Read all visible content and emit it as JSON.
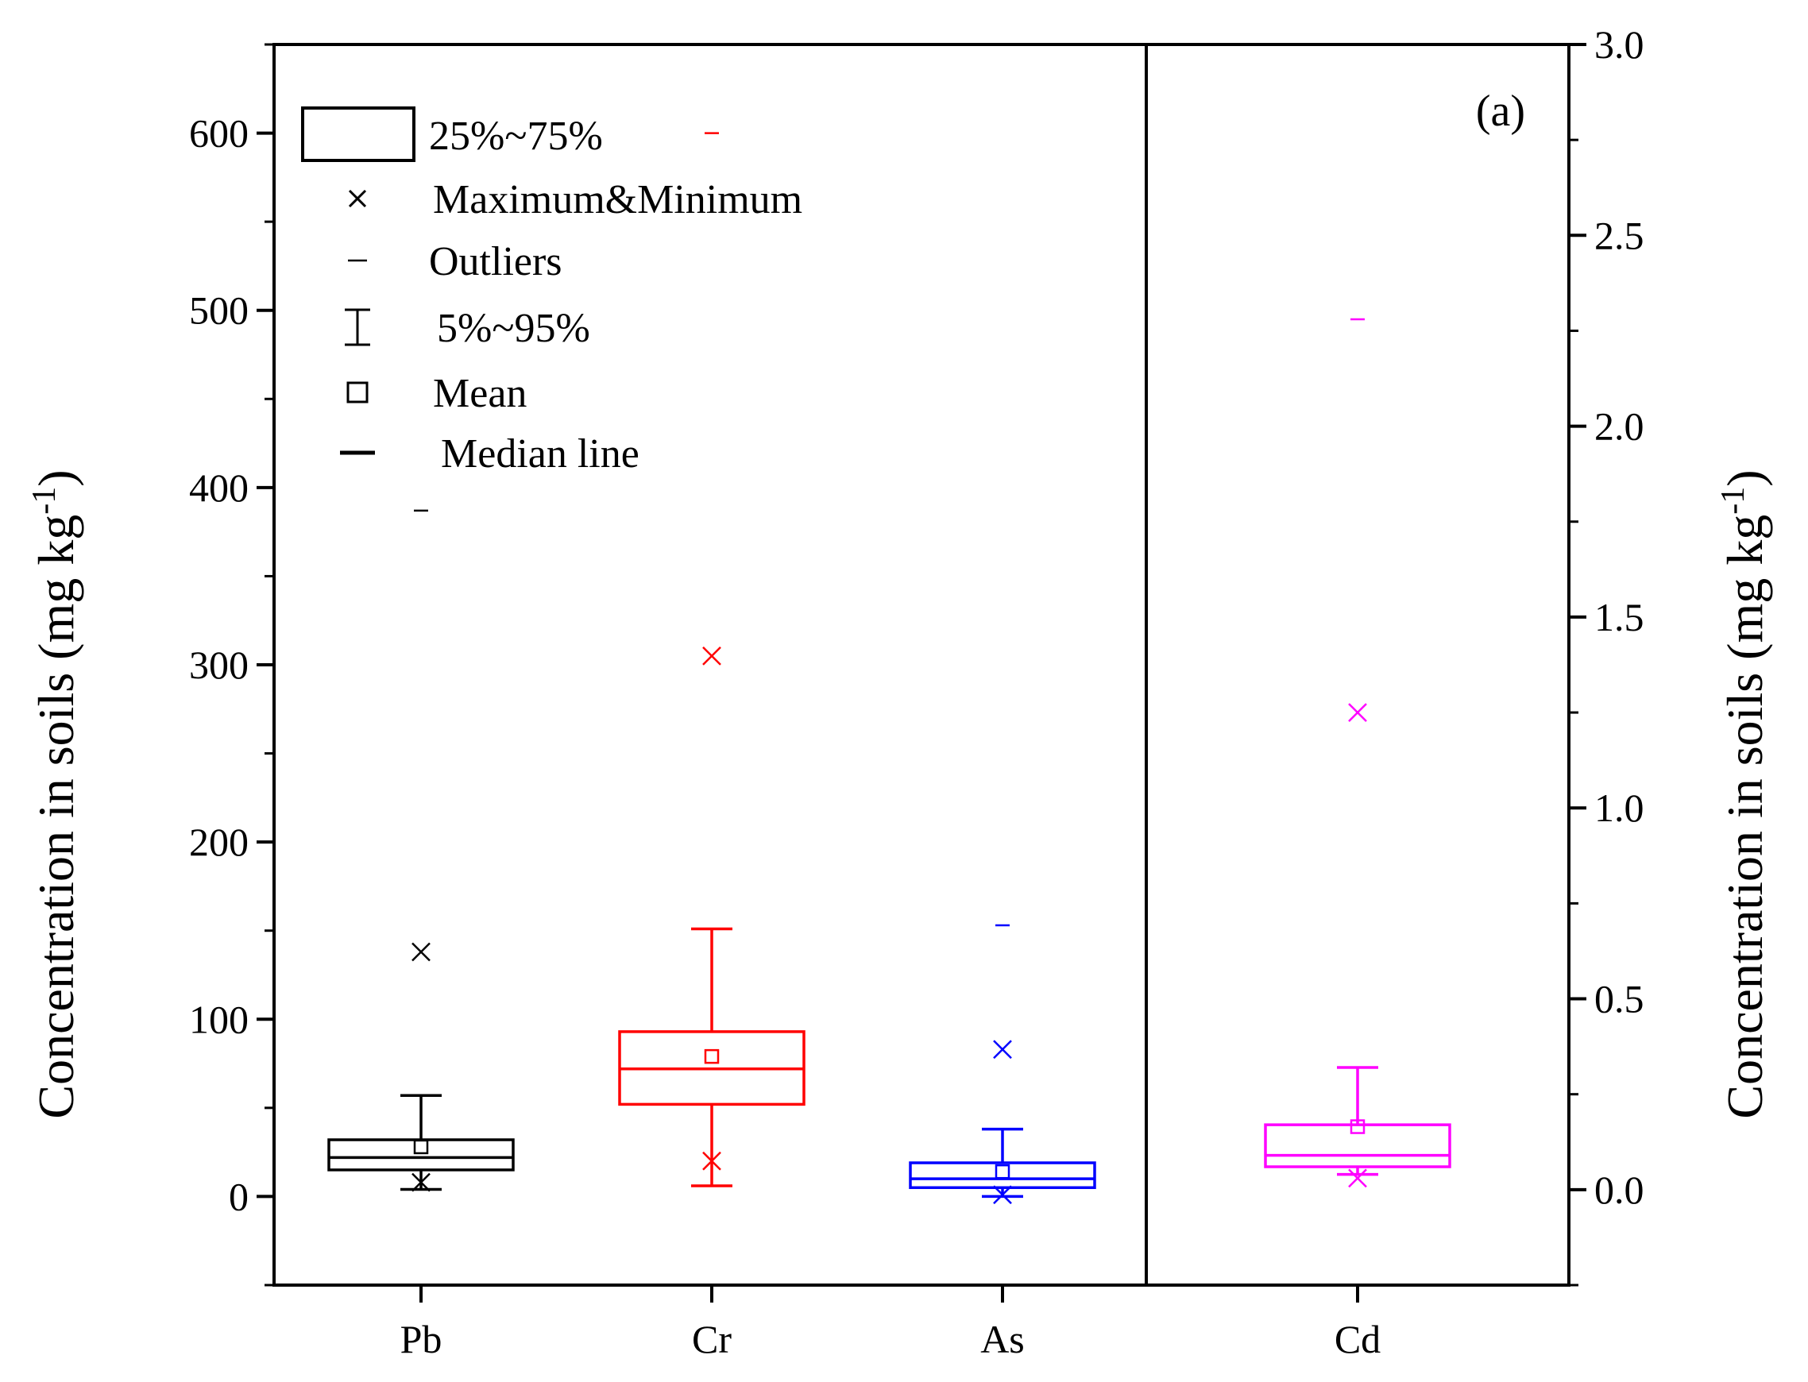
{
  "chart_data": {
    "type": "box",
    "panel_label": "(a)",
    "left_axis": {
      "label": "Concentration  in soils (mg kg",
      "label_superscript": "-1",
      "label_close": ")",
      "ylim": [
        -50,
        650
      ],
      "ticks": [
        0,
        100,
        200,
        300,
        400,
        500,
        600
      ],
      "tick_labels": [
        "0",
        "100",
        "200",
        "300",
        "400",
        "500",
        "600"
      ]
    },
    "right_axis": {
      "label": "Concentration in soils (mg kg",
      "label_superscript": "-1",
      "label_close": ")",
      "ylim": [
        -0.25,
        3.0
      ],
      "ticks": [
        0.0,
        0.5,
        1.0,
        1.5,
        2.0,
        2.5,
        3.0
      ],
      "tick_labels": [
        "0.0",
        "0.5",
        "1.0",
        "1.5",
        "2.0",
        "2.5",
        "3.0"
      ]
    },
    "categories": [
      "Pb",
      "Cr",
      "As",
      "Cd"
    ],
    "series": [
      {
        "name": "Pb",
        "axis": "left",
        "color": "#000000",
        "q1": 15,
        "median": 22,
        "q3": 32,
        "p5": 4,
        "p95": 57,
        "mean": 28,
        "max": 138,
        "min": 8,
        "outliers": [
          387
        ]
      },
      {
        "name": "Cr",
        "axis": "left",
        "color": "#ff0000",
        "q1": 52,
        "median": 72,
        "q3": 93,
        "p5": 6,
        "p95": 151,
        "mean": 79,
        "max": 305,
        "min": 20,
        "outliers": [
          600
        ]
      },
      {
        "name": "As",
        "axis": "left",
        "color": "#0000ff",
        "q1": 5,
        "median": 10,
        "q3": 19,
        "p5": 0,
        "p95": 38,
        "mean": 14,
        "max": 83,
        "min": 1,
        "outliers": [
          153
        ]
      },
      {
        "name": "Cd",
        "axis": "right",
        "color": "#ff00ff",
        "q1": 0.06,
        "median": 0.09,
        "q3": 0.17,
        "p5": 0.04,
        "p95": 0.32,
        "mean": 0.165,
        "max": 1.25,
        "min": 0.03,
        "outliers": [
          2.28
        ]
      }
    ],
    "legend": {
      "position": "top-left",
      "entries": [
        {
          "symbol": "box",
          "label": "25%~75%"
        },
        {
          "symbol": "cross",
          "label": "Maximum&Minimum"
        },
        {
          "symbol": "dash",
          "label": "Outliers"
        },
        {
          "symbol": "whisker",
          "label": "5%~95%"
        },
        {
          "symbol": "square",
          "label": "Mean"
        },
        {
          "symbol": "median",
          "label": "Median line"
        }
      ]
    }
  }
}
